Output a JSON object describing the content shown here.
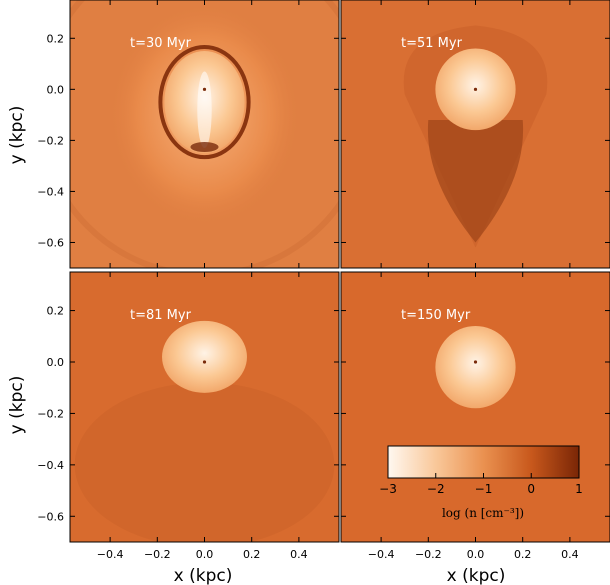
{
  "chart_data": {
    "type": "heatmap",
    "panels": [
      {
        "time_label": "t=30 Myr",
        "bubble": {
          "cx": 0.0,
          "cy": -0.05,
          "rx": 0.17,
          "ry": 0.2
        },
        "shell": true,
        "wake": "none",
        "bg": "#e07f42"
      },
      {
        "time_label": "t=51 Myr",
        "bubble": {
          "cx": 0.0,
          "cy": 0.0,
          "rx": 0.17,
          "ry": 0.16
        },
        "shell": false,
        "wake": "cone",
        "bg": "#d96f33"
      },
      {
        "time_label": "t=81 Myr",
        "bubble": {
          "cx": 0.0,
          "cy": 0.02,
          "rx": 0.18,
          "ry": 0.14
        },
        "shell": false,
        "wake": "wide",
        "bg": "#d86b2e"
      },
      {
        "time_label": "t=150 Myr",
        "bubble": {
          "cx": 0.0,
          "cy": -0.02,
          "rx": 0.17,
          "ry": 0.16
        },
        "shell": false,
        "wake": "none",
        "bg": "#d8692c"
      }
    ],
    "xlabel": "x (kpc)",
    "ylabel": "y (kpc)",
    "xlim": [
      -0.57,
      0.57
    ],
    "ylim": [
      -0.7,
      0.35
    ],
    "xticks": [
      -0.4,
      -0.2,
      0.0,
      0.2,
      0.4
    ],
    "xtick_labels": [
      "−0.4",
      "−0.2",
      "0.0",
      "0.2",
      "0.4"
    ],
    "yticks": [
      0.2,
      0.0,
      -0.2,
      -0.4,
      -0.6
    ],
    "ytick_labels": [
      "0.2",
      "0.0",
      "−0.2",
      "−0.4",
      "−0.6"
    ],
    "colorbar": {
      "label": "log (n [cm⁻³])",
      "range": [
        -3,
        1
      ],
      "ticks": [
        -3,
        -2,
        -1,
        0,
        1
      ],
      "tick_labels": [
        "−3",
        "−2",
        "−1",
        "0",
        "1"
      ],
      "colors": [
        "#fff8f0",
        "#f9c89a",
        "#ea9150",
        "#c8581c",
        "#7a2606"
      ]
    }
  }
}
